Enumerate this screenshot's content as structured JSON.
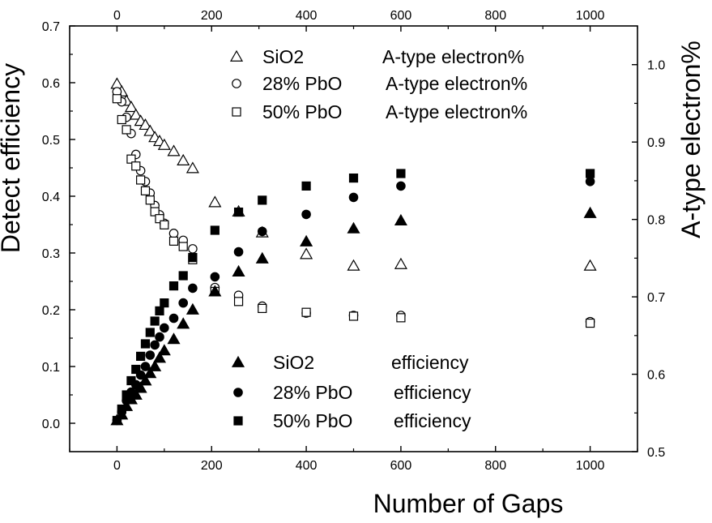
{
  "chart_data": {
    "type": "scatter",
    "xlabel": "Number of Gaps",
    "ylabel": "Detect efficiency",
    "y2label": "A-type electron%",
    "xlim": [
      -100,
      1100
    ],
    "ylim": [
      -0.05,
      0.7
    ],
    "y2lim": [
      0.5,
      1.05
    ],
    "x_ticks": [
      "0",
      "200",
      "400",
      "600",
      "800",
      "1000"
    ],
    "x_top_ticks": [
      "0",
      "200",
      "400",
      "600",
      "800",
      "1000"
    ],
    "y_ticks": [
      "0.0",
      "0.1",
      "0.2",
      "0.3",
      "0.4",
      "0.5",
      "0.6",
      "0.7"
    ],
    "y2_ticks": [
      "0.5",
      "0.6",
      "0.7",
      "0.8",
      "0.9",
      "1.0"
    ],
    "legend_top": [
      {
        "label": "SiO2",
        "metric": "A-type electron%",
        "marker": "open-triangle"
      },
      {
        "label": "28% PbO",
        "metric": "A-type electron%",
        "marker": "open-circle"
      },
      {
        "label": "50% PbO",
        "metric": "A-type electron%",
        "marker": "open-square"
      }
    ],
    "legend_bottom": [
      {
        "label": "SiO2",
        "metric": "efficiency",
        "marker": "filled-triangle"
      },
      {
        "label": "28% PbO",
        "metric": "efficiency",
        "marker": "filled-circle"
      },
      {
        "label": "50% PbO",
        "metric": "efficiency",
        "marker": "filled-square"
      }
    ],
    "series": [
      {
        "name": "SiO2 A-type electron%",
        "axis": "right",
        "marker": "open-triangle",
        "x": [
          0,
          10,
          20,
          30,
          40,
          50,
          60,
          70,
          80,
          90,
          100,
          120,
          140,
          160,
          207,
          257,
          307,
          400,
          500,
          600,
          1000
        ],
        "y": [
          0.975,
          0.965,
          0.953,
          0.945,
          0.935,
          0.927,
          0.922,
          0.914,
          0.906,
          0.901,
          0.896,
          0.888,
          0.876,
          0.866,
          0.822,
          0.81,
          0.783,
          0.755,
          0.74,
          0.742,
          0.74
        ]
      },
      {
        "name": "28% PbO A-type electron%",
        "axis": "right",
        "marker": "open-circle",
        "x": [
          0,
          10,
          20,
          30,
          40,
          50,
          60,
          70,
          80,
          90,
          100,
          120,
          140,
          160,
          207,
          257,
          307,
          400,
          500,
          600,
          1000
        ],
        "y": [
          0.965,
          0.952,
          0.932,
          0.911,
          0.884,
          0.863,
          0.849,
          0.834,
          0.818,
          0.806,
          0.795,
          0.782,
          0.773,
          0.762,
          0.712,
          0.702,
          0.688,
          0.679,
          0.676,
          0.676,
          0.668
        ]
      },
      {
        "name": "50% PbO A-type electron%",
        "axis": "right",
        "marker": "open-square",
        "x": [
          0,
          10,
          20,
          30,
          40,
          50,
          60,
          70,
          80,
          90,
          100,
          120,
          140,
          160,
          207,
          257,
          307,
          400,
          500,
          600,
          1000
        ],
        "y": [
          0.956,
          0.929,
          0.916,
          0.878,
          0.869,
          0.851,
          0.837,
          0.825,
          0.81,
          0.801,
          0.793,
          0.772,
          0.765,
          0.748,
          0.707,
          0.694,
          0.685,
          0.68,
          0.675,
          0.673,
          0.666
        ]
      },
      {
        "name": "SiO2 efficiency",
        "axis": "left",
        "marker": "filled-triangle",
        "x": [
          0,
          10,
          20,
          30,
          40,
          50,
          60,
          70,
          80,
          90,
          100,
          120,
          140,
          160,
          207,
          257,
          307,
          400,
          500,
          600,
          1000
        ],
        "y": [
          0.005,
          0.015,
          0.03,
          0.042,
          0.05,
          0.062,
          0.075,
          0.088,
          0.1,
          0.115,
          0.128,
          0.148,
          0.175,
          0.2,
          0.232,
          0.267,
          0.29,
          0.32,
          0.343,
          0.357,
          0.37
        ]
      },
      {
        "name": "28% PbO efficiency",
        "axis": "left",
        "marker": "filled-circle",
        "x": [
          0,
          10,
          20,
          30,
          40,
          50,
          60,
          70,
          80,
          90,
          100,
          120,
          140,
          160,
          207,
          257,
          307,
          400,
          500,
          600,
          1000
        ],
        "y": [
          0.005,
          0.02,
          0.04,
          0.055,
          0.068,
          0.085,
          0.1,
          0.12,
          0.138,
          0.152,
          0.168,
          0.185,
          0.212,
          0.238,
          0.258,
          0.302,
          0.338,
          0.368,
          0.398,
          0.418,
          0.426
        ]
      },
      {
        "name": "50% PbO efficiency",
        "axis": "left",
        "marker": "filled-square",
        "x": [
          0,
          10,
          20,
          30,
          40,
          50,
          60,
          70,
          80,
          90,
          100,
          120,
          140,
          160,
          207,
          257,
          307,
          400,
          500,
          600,
          1000
        ],
        "y": [
          0.005,
          0.025,
          0.05,
          0.075,
          0.095,
          0.118,
          0.14,
          0.16,
          0.18,
          0.198,
          0.212,
          0.242,
          0.26,
          0.292,
          0.34,
          0.372,
          0.393,
          0.418,
          0.432,
          0.44,
          0.44
        ]
      }
    ]
  }
}
